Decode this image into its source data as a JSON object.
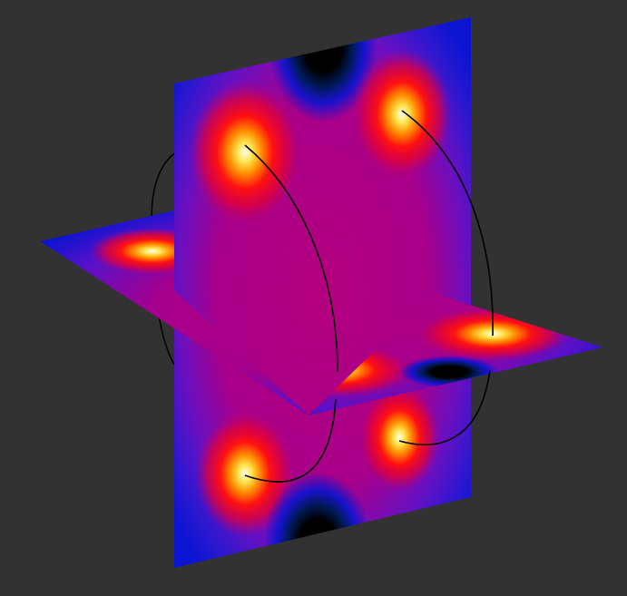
{
  "scene": {
    "description_free": true,
    "background_color": "#323232",
    "colors": {
      "deep_blue": "#0a14d2",
      "violet": "#5a10c8",
      "magenta": "#b4007e",
      "red": "#ff1010",
      "orange": "#ff6a00",
      "yellow": "#ffe24a",
      "white_core": "#ffffee",
      "black": "#000000",
      "curve": "#000000"
    },
    "planes": [
      {
        "name": "vertical-plane"
      },
      {
        "name": "horizontal-plane"
      }
    ],
    "curves_count": 5
  }
}
